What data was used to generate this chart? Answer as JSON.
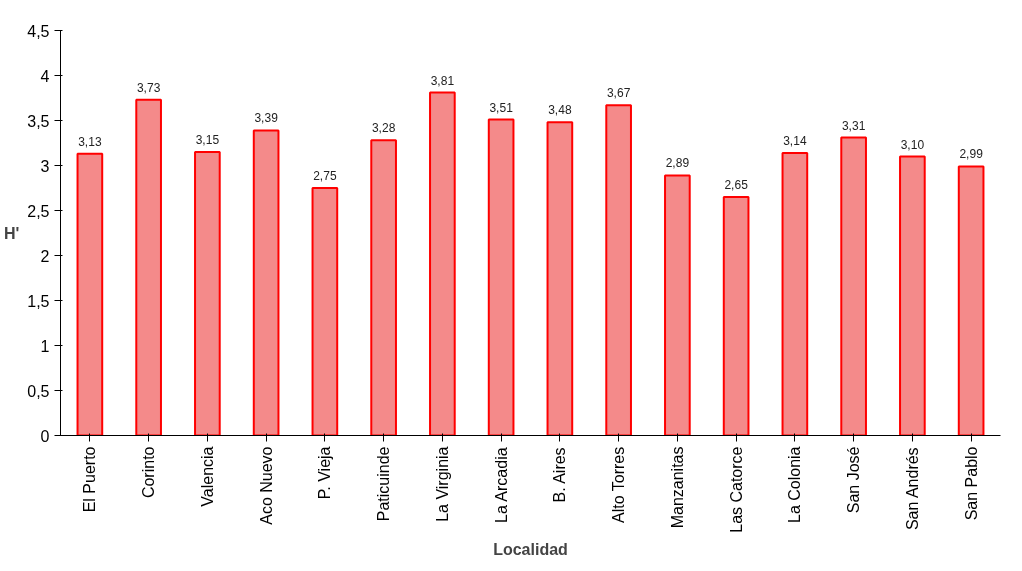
{
  "chart_data": {
    "type": "bar",
    "xlabel": "Localidad",
    "ylabel": "H'",
    "categories": [
      "El Puerto",
      "Corinto",
      "Valencia",
      "Aco Nuevo",
      "P. Vieja",
      "Paticuinde",
      "La Virginia",
      "La Arcadia",
      "B. Aires",
      "Alto Torres",
      "Manzanitas",
      "Las Catorce",
      "La Colonia",
      "San José",
      "San Andrés",
      "San Pablo"
    ],
    "values": [
      3.13,
      3.73,
      3.15,
      3.39,
      2.75,
      3.28,
      3.81,
      3.51,
      3.48,
      3.67,
      2.89,
      2.65,
      3.14,
      3.31,
      3.1,
      2.99
    ],
    "value_labels": [
      "3,13",
      "3,73",
      "3,15",
      "3,39",
      "2,75",
      "3,28",
      "3,81",
      "3,51",
      "3,48",
      "3,67",
      "2,89",
      "2,65",
      "3,14",
      "3,31",
      "3,10",
      "2,99"
    ],
    "color": "#f48a8a",
    "ylim": [
      0,
      4.5
    ],
    "yticks": [
      0,
      {
        "value": 0.5,
        "label": "0,5"
      },
      1,
      {
        "value": 1.5,
        "label": "1,5"
      },
      2,
      {
        "value": 2.5,
        "label": "2,5"
      },
      3,
      {
        "value": 3.5,
        "label": "3,5"
      },
      4,
      {
        "value": 4.5,
        "label": "4,5"
      }
    ],
    "grid": false
  }
}
